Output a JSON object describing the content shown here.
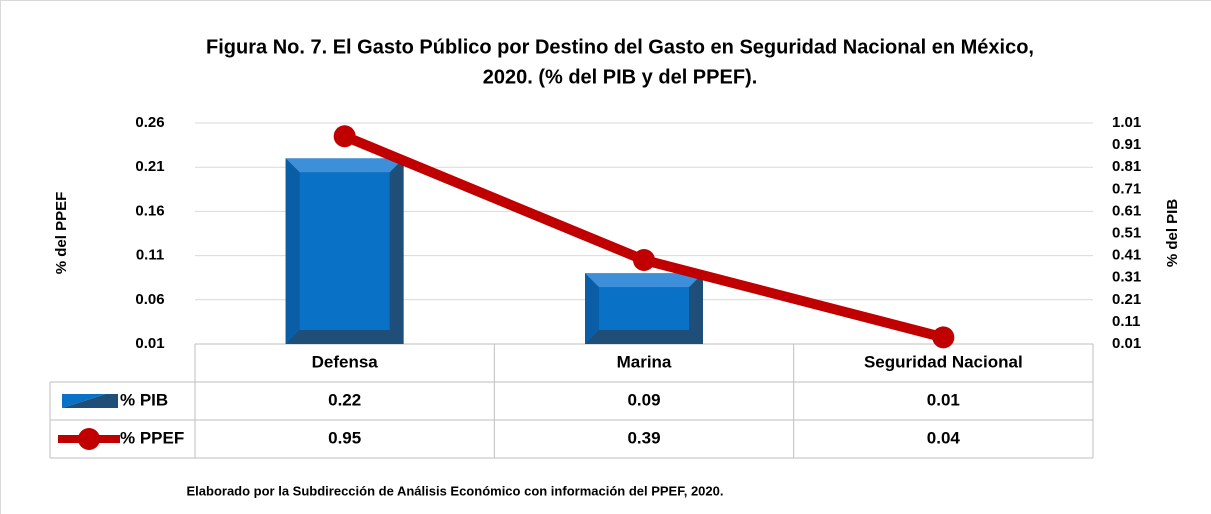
{
  "chart_data": {
    "type": "combo",
    "title": [
      "Figura No. 7. El Gasto Público por Destino del Gasto en Seguridad Nacional en México,",
      "2020. (% del PIB y del PPEF)."
    ],
    "ylabel": "% del PPEF",
    "y2label": "% del PIB",
    "categories": [
      "Defensa",
      "Marina",
      "Seguridad Nacional"
    ],
    "series": [
      {
        "name": "% PIB",
        "type": "bar",
        "color": "#0a72c6",
        "values": [
          0.22,
          0.09,
          0.01
        ]
      },
      {
        "name": "% PPEF",
        "type": "line",
        "axis": "y2",
        "color": "#c00000",
        "values": [
          0.95,
          0.39,
          0.04
        ]
      }
    ],
    "ylim": [
      0.01,
      0.26
    ],
    "yticks": [
      0.01,
      0.06,
      0.11,
      0.16,
      0.21,
      0.26
    ],
    "y2lim": [
      0.01,
      1.01
    ],
    "y2ticks": [
      0.01,
      0.11,
      0.21,
      0.31,
      0.41,
      0.51,
      0.61,
      0.71,
      0.81,
      0.91,
      1.01
    ],
    "grid": true,
    "note": "Elaborado por la Subdirección de Análisis Económico con información del  PPEF, 2020."
  }
}
